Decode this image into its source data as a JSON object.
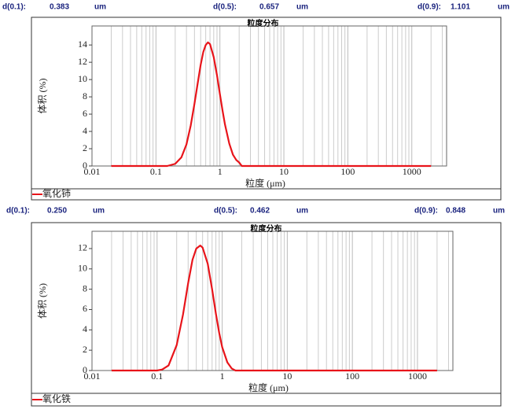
{
  "chart_data": [
    {
      "type": "line",
      "stats": [
        {
          "label": "d(0.1):",
          "value": 0.383,
          "unit": "um"
        },
        {
          "label": "d(0.5):",
          "value": 0.657,
          "unit": "um"
        },
        {
          "label": "d(0.9):",
          "value": 1.101,
          "unit": "um"
        }
      ],
      "title": "粒度分布",
      "xlabel": "粒度 (μm)",
      "ylabel": "体积 (%)",
      "xscale": "log",
      "xlim": [
        0.01,
        3500
      ],
      "ylim": [
        0,
        16.2
      ],
      "xticks": [
        0.01,
        0.1,
        1,
        10,
        100,
        1000
      ],
      "yticks": [
        0,
        2,
        4,
        6,
        8,
        10,
        12,
        14
      ],
      "grid": "x",
      "minor_grid": true,
      "series": [
        {
          "name": "氧化铈",
          "color": "#e8141a",
          "x": [
            0.02,
            0.1,
            0.15,
            0.2,
            0.25,
            0.3,
            0.35,
            0.4,
            0.45,
            0.5,
            0.55,
            0.6,
            0.65,
            0.7,
            0.8,
            0.9,
            1.0,
            1.1,
            1.2,
            1.4,
            1.6,
            1.8,
            2.0,
            2.2,
            10,
            100,
            2000
          ],
          "values": [
            0,
            0,
            0,
            0.25,
            1.0,
            2.5,
            4.7,
            7.2,
            9.6,
            11.7,
            13.2,
            14.0,
            14.3,
            14.1,
            12.6,
            10.5,
            8.3,
            6.4,
            4.8,
            2.6,
            1.3,
            0.7,
            0.4,
            0,
            0,
            0,
            0
          ]
        }
      ]
    },
    {
      "type": "line",
      "stats": [
        {
          "label": "d(0.1):",
          "value": {
            "value": 0.25,
            "label": "0.250"
          },
          "unit": "um"
        },
        {
          "label": "d(0.5):",
          "value": 0.462,
          "unit": "um"
        },
        {
          "label": "d(0.9):",
          "value": 0.848,
          "unit": "um"
        }
      ],
      "title": "粒度分布",
      "xlabel": "粒度 (μm)",
      "ylabel": "体积 (%)",
      "xscale": "log",
      "xlim": [
        0.01,
        3500
      ],
      "ylim": [
        0,
        13.7
      ],
      "xticks": [
        0.01,
        0.1,
        1,
        10,
        100,
        1000
      ],
      "yticks": [
        0,
        2,
        4,
        6,
        8,
        10,
        12
      ],
      "grid": "x",
      "minor_grid": true,
      "series": [
        {
          "name": "氧化铁",
          "color": "#e8141a",
          "x": [
            0.02,
            0.1,
            0.12,
            0.15,
            0.2,
            0.25,
            0.3,
            0.35,
            0.4,
            0.46,
            0.5,
            0.6,
            0.7,
            0.8,
            0.9,
            1.0,
            1.2,
            1.4,
            1.6,
            10,
            100,
            2000
          ],
          "values": [
            0,
            0,
            0.1,
            0.5,
            2.5,
            5.5,
            8.6,
            10.9,
            12.0,
            12.3,
            12.1,
            10.5,
            8.0,
            5.6,
            3.7,
            2.3,
            0.8,
            0.2,
            0,
            0,
            0,
            0
          ]
        }
      ]
    }
  ]
}
